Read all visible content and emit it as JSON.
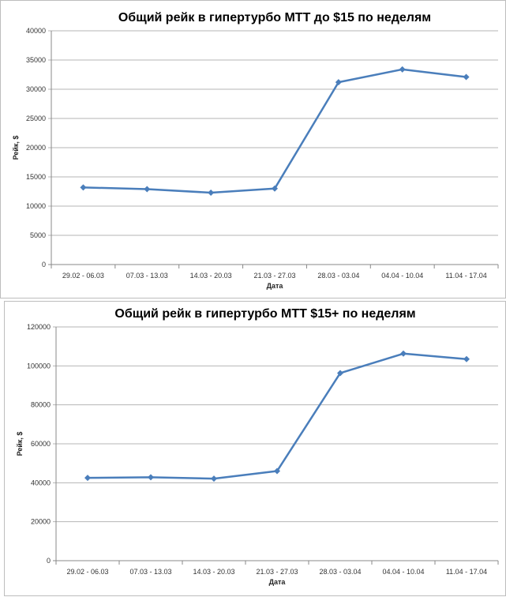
{
  "chart_data": [
    {
      "type": "line",
      "title": "Общий рейк в гипертурбо МТТ до $15 по неделям",
      "xlabel": "Дата",
      "ylabel": "Рейк, $",
      "categories": [
        "29.02 - 06.03",
        "07.03 - 13.03",
        "14.03 - 20.03",
        "21.03 - 27.03",
        "28.03 - 03.04",
        "04.04 - 10.04",
        "11.04 - 17.04"
      ],
      "values": [
        13200,
        12900,
        12300,
        13000,
        31200,
        33400,
        32100
      ],
      "ylim": [
        0,
        40000
      ],
      "yticks": [
        "0",
        "5000",
        "10000",
        "15000",
        "20000",
        "25000",
        "30000",
        "35000",
        "40000"
      ],
      "grid": true,
      "color": "#4a7ebb"
    },
    {
      "type": "line",
      "title": "Общий рейк в гипертурбо МТТ $15+ по неделям",
      "xlabel": "Дата",
      "ylabel": "Рейк, $",
      "categories": [
        "29.02 - 06.03",
        "07.03 - 13.03",
        "14.03 - 20.03",
        "21.03 - 27.03",
        "28.03 - 03.04",
        "04.04 - 10.04",
        "11.04 - 17.04"
      ],
      "values": [
        42500,
        42800,
        42100,
        46000,
        96300,
        106300,
        103500
      ],
      "ylim": [
        0,
        120000
      ],
      "yticks": [
        "0",
        "20000",
        "40000",
        "60000",
        "80000",
        "100000",
        "120000"
      ],
      "grid": true,
      "color": "#4a7ebb"
    }
  ]
}
